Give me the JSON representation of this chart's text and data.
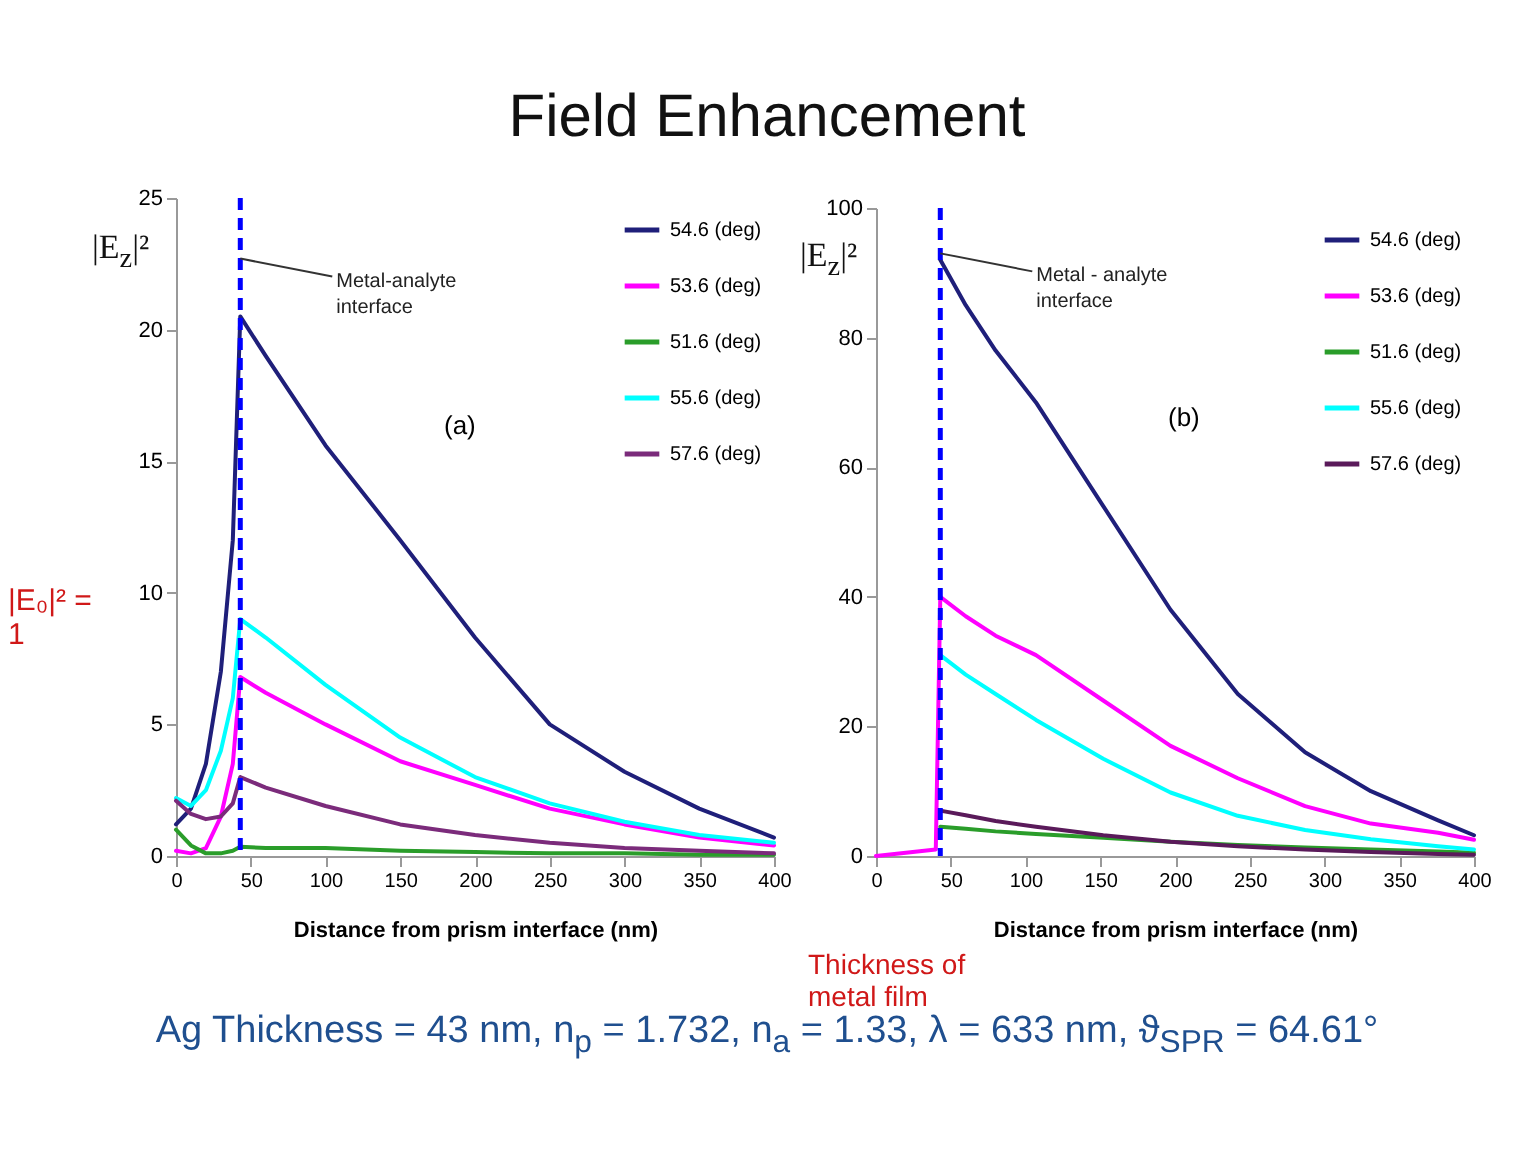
{
  "chart_data": [
    {
      "type": "line",
      "title": "Field Enhancement",
      "xlabel": "Distance from prism interface (nm)",
      "ylabel": "|E$_{z}$|²",
      "legend": "top right",
      "x": [
        0,
        10,
        20,
        30,
        38,
        43,
        60,
        100,
        150,
        200,
        250,
        300,
        350,
        400
      ],
      "series": [
        {
          "name": "54.6 (deg)",
          "color": "#1f1f7a",
          "values": [
            1.2,
            1.8,
            3.5,
            7,
            12,
            20.5,
            19,
            15.6,
            12,
            8.3,
            5,
            3.2,
            1.8,
            0.7
          ]
        },
        {
          "name": "53.6 (deg)",
          "color": "#ff00ff",
          "values": [
            0.2,
            0.1,
            0.3,
            1.5,
            3.5,
            6.8,
            6.2,
            5,
            3.6,
            2.7,
            1.8,
            1.2,
            0.7,
            0.4
          ]
        },
        {
          "name": "51.6 (deg)",
          "color": "#2a9d2a",
          "values": [
            1,
            0.4,
            0.1,
            0.1,
            0.2,
            0.35,
            0.3,
            0.3,
            0.2,
            0.15,
            0.1,
            0.1,
            0.05,
            0.05
          ]
        },
        {
          "name": "55.6 (deg)",
          "color": "#00ffff",
          "values": [
            2.2,
            1.9,
            2.5,
            4,
            6,
            9,
            8.3,
            6.5,
            4.5,
            3,
            2,
            1.3,
            0.8,
            0.5
          ]
        },
        {
          "name": "57.6 (deg)",
          "color": "#7b2b7b",
          "values": [
            2.1,
            1.6,
            1.4,
            1.5,
            2,
            3,
            2.6,
            1.9,
            1.2,
            0.8,
            0.5,
            0.3,
            0.2,
            0.1
          ]
        }
      ],
      "xlim": [
        0,
        400
      ],
      "xticks": [
        0,
        50,
        100,
        150,
        200,
        250,
        300,
        350,
        400
      ],
      "ylim": [
        0,
        25
      ],
      "yticks": [
        0,
        5,
        10,
        15,
        20,
        25
      ],
      "ref_lines": [
        {
          "axis": "x",
          "value": 43,
          "color": "#0000ff",
          "line_style": "dashed"
        }
      ],
      "annotations": [
        {
          "text": "Metal-analyte interface",
          "x": 43,
          "y": 22.7
        },
        "(a)",
        "|E₀|² = 1"
      ]
    },
    {
      "type": "line",
      "xlabel": "Distance from prism interface (nm)",
      "ylabel": "|E$_{z}$|²",
      "legend": "top right",
      "x": [
        0,
        20,
        40,
        43,
        60,
        80,
        107,
        152,
        197,
        242,
        287,
        331,
        376,
        400
      ],
      "series": [
        {
          "name": "54.6 (deg)",
          "color": "#1f1f7a",
          "values": [
            null,
            null,
            null,
            92,
            85,
            78,
            70,
            54,
            38,
            25,
            16,
            10,
            5.5,
            3.2
          ]
        },
        {
          "name": "53.6 (deg)",
          "color": "#ff00ff",
          "values": [
            0,
            0.5,
            1,
            40,
            37,
            34,
            31,
            24,
            17,
            12,
            7.7,
            5,
            3.6,
            2.5
          ]
        },
        {
          "name": "51.6 (deg)",
          "color": "#2a9d2a",
          "values": [
            null,
            null,
            null,
            4.5,
            4.2,
            3.8,
            3.4,
            2.8,
            2.2,
            1.7,
            1.3,
            1,
            0.7,
            0.5
          ]
        },
        {
          "name": "55.6 (deg)",
          "color": "#00ffff",
          "values": [
            null,
            null,
            null,
            31,
            28,
            25,
            21,
            15,
            9.8,
            6.2,
            4,
            2.6,
            1.5,
            1
          ]
        },
        {
          "name": "57.6 (deg)",
          "color": "#5a1a5a",
          "values": [
            null,
            null,
            null,
            7,
            6.3,
            5.4,
            4.5,
            3.2,
            2.2,
            1.5,
            1,
            0.6,
            0.3,
            0.2
          ]
        }
      ],
      "xlim": [
        0,
        400
      ],
      "xticks": [
        0,
        50,
        100,
        150,
        200,
        250,
        300,
        350,
        400
      ],
      "ylim": [
        0,
        100
      ],
      "yticks": [
        0,
        20,
        40,
        60,
        80,
        100
      ],
      "ref_lines": [
        {
          "axis": "x",
          "value": 43,
          "color": "#0000ff",
          "line_style": "dashed"
        }
      ],
      "annotations": [
        {
          "text": "Metal - analyte interface",
          "x": 43,
          "y": 93
        },
        "(b)",
        "Thickness of metal film",
        "Ag Thickness = 43 nm, n$_{p}$ = 1.732, n$_{a}$ = 1.33, λ = 633 nm, ϑ$_{SPR}$ = 64.61°"
      ]
    }
  ]
}
